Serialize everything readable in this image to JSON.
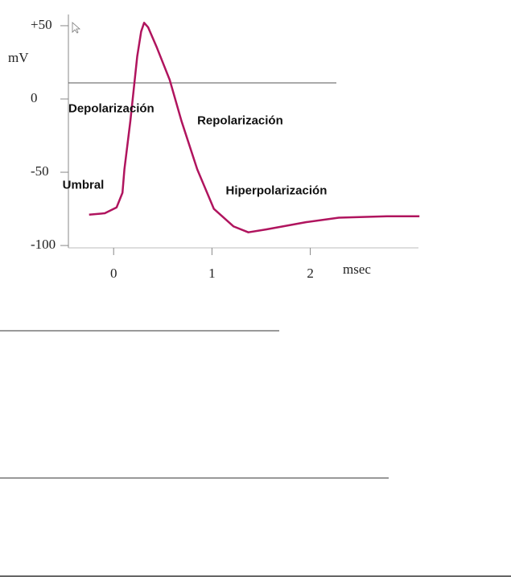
{
  "chart_data": {
    "type": "line",
    "y_label": "mV",
    "x_label": "msec",
    "x": [
      -0.25,
      -0.09,
      0.03,
      0.09,
      0.11,
      0.17,
      0.24,
      0.28,
      0.31,
      0.35,
      0.44,
      0.57,
      0.69,
      0.85,
      1.02,
      1.22,
      1.37,
      1.55,
      1.96,
      2.29,
      2.78,
      3.11
    ],
    "values": [
      -79,
      -78,
      -74,
      -64,
      -48,
      -15,
      29,
      46,
      52,
      49,
      35,
      13,
      -15,
      -48,
      -75,
      -87,
      -91,
      -89,
      -84,
      -81,
      -80,
      -80
    ],
    "color": "#b0145e",
    "xlim": [
      -0.46,
      3.1
    ],
    "xticks": [
      0,
      1,
      2
    ],
    "ylim": [
      -101.6,
      64.8
    ],
    "yticks": [
      {
        "value": 50,
        "label": "+50"
      },
      0,
      -50,
      -100
    ],
    "hline": 11,
    "annotations": [
      {
        "text": "Depolarización",
        "x": -0.46,
        "y": -7
      },
      {
        "text": "Repolarización",
        "x": 0.85,
        "y": -15
      },
      {
        "text": "Hiperpolarización",
        "x": 1.14,
        "y": -63
      },
      {
        "text": "Umbral",
        "x": -0.52,
        "y": -59
      }
    ]
  }
}
